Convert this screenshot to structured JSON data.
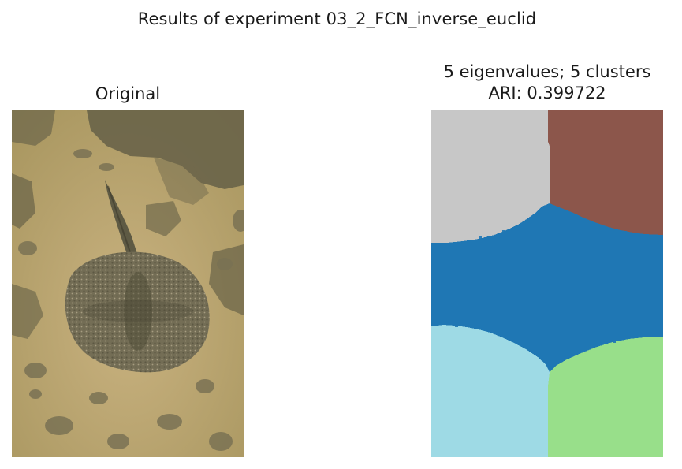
{
  "figure": {
    "suptitle": "Results of experiment 03_2_FCN_inverse_euclid"
  },
  "original_panel": {
    "title": "Original",
    "image_subject": "photograph of a stingray on sandy sea floor"
  },
  "segmentation_panel": {
    "title_line1": "5 eigenvalues; 5 clusters",
    "title_line2": "ARI: 0.399722",
    "clusters": [
      {
        "label": "top-left",
        "color": "#c7c7c7"
      },
      {
        "label": "top-right",
        "color": "#8c564b"
      },
      {
        "label": "middle",
        "color": "#1f77b4"
      },
      {
        "label": "bottom-left",
        "color": "#9edae5"
      },
      {
        "label": "bottom-right",
        "color": "#98df8a"
      }
    ]
  },
  "colors": {
    "sand": "#bfa976",
    "sand_dark": "#8b7d55",
    "rock": "#5e5a44",
    "ray_body": "#6d6a52"
  }
}
